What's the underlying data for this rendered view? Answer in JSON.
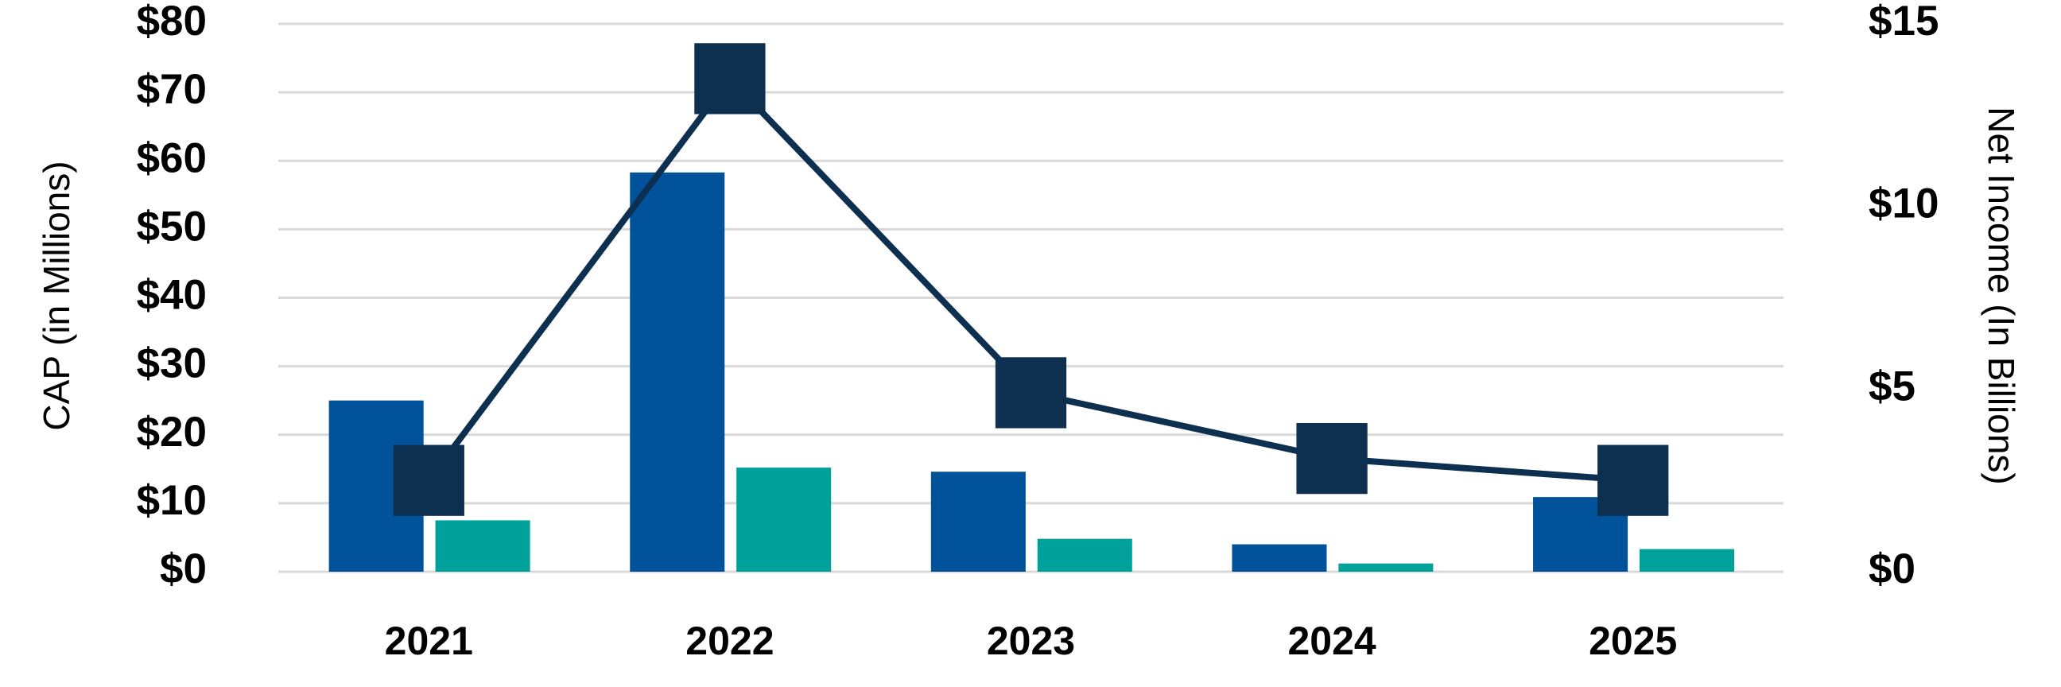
{
  "chart_data": {
    "type": "bar",
    "categories": [
      "2021",
      "2022",
      "2023",
      "2024",
      "2025"
    ],
    "series": [
      {
        "type": "bar",
        "color": "#00529b",
        "values": [
          25,
          58.3,
          14.6,
          4.0,
          10.9
        ]
      },
      {
        "type": "bar",
        "color": "#00a19a",
        "values": [
          7.5,
          15.2,
          4.8,
          1.2,
          3.3
        ]
      },
      {
        "type": "line",
        "axis": "y2",
        "color": "#0d3050",
        "values": [
          2.5,
          13.5,
          4.9,
          3.1,
          2.5
        ]
      }
    ],
    "ylabel": "CAP (in Millions)",
    "y2label": "Net Income (In Billions)",
    "ylim": [
      0,
      80
    ],
    "yticks": [
      {
        "value": 0,
        "label": "$0"
      },
      {
        "value": 10,
        "label": "$10"
      },
      {
        "value": 20,
        "label": "$20"
      },
      {
        "value": 30,
        "label": "$30"
      },
      {
        "value": 40,
        "label": "$40"
      },
      {
        "value": 50,
        "label": "$50"
      },
      {
        "value": 60,
        "label": "$60"
      },
      {
        "value": 70,
        "label": "$70"
      },
      {
        "value": 80,
        "label": "$80"
      }
    ],
    "y2lim": [
      0,
      15
    ],
    "y2ticks": [
      {
        "value": 0,
        "label": "$0"
      },
      {
        "value": 5,
        "label": "$5"
      },
      {
        "value": 10,
        "label": "$10"
      },
      {
        "value": 15,
        "label": "$15"
      }
    ],
    "grid": true
  }
}
